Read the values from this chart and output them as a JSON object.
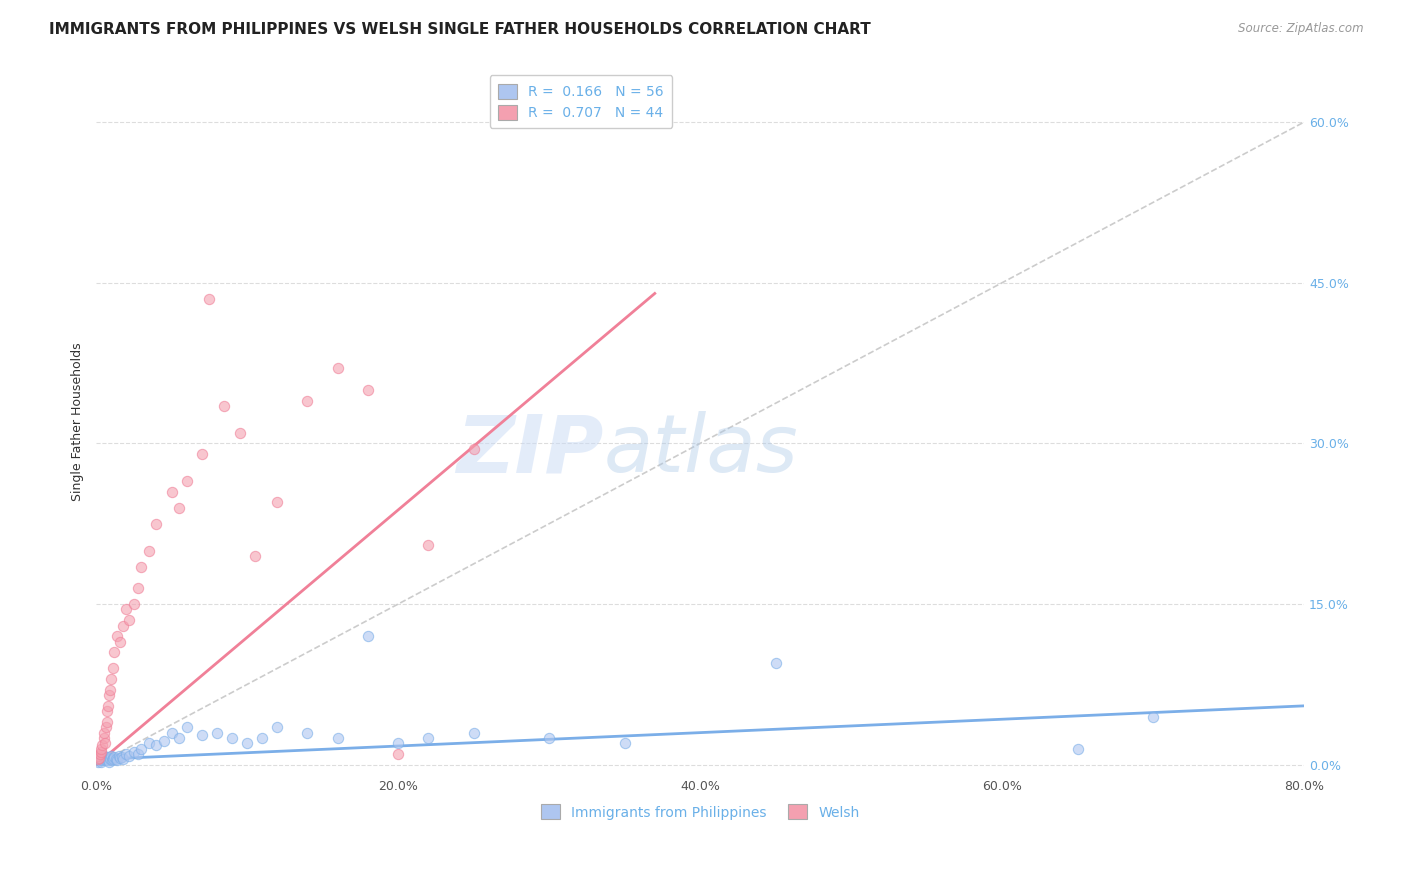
{
  "title": "IMMIGRANTS FROM PHILIPPINES VS WELSH SINGLE FATHER HOUSEHOLDS CORRELATION CHART",
  "source": "Source: ZipAtlas.com",
  "ylabel": "Single Father Households",
  "ytick_values": [
    0.0,
    15.0,
    30.0,
    45.0,
    60.0
  ],
  "xtick_values": [
    0.0,
    20.0,
    40.0,
    60.0,
    80.0
  ],
  "xlim": [
    0.0,
    80.0
  ],
  "ylim": [
    -1.0,
    65.0
  ],
  "legend_entries": [
    {
      "label": "Immigrants from Philippines",
      "color": "#aec6f0",
      "R": "0.166",
      "N": "56"
    },
    {
      "label": "Welsh",
      "color": "#f4a0b0",
      "R": "0.707",
      "N": "44"
    }
  ],
  "blue_scatter_x": [
    0.1,
    0.15,
    0.2,
    0.25,
    0.3,
    0.35,
    0.4,
    0.5,
    0.55,
    0.6,
    0.65,
    0.7,
    0.75,
    0.8,
    0.85,
    0.9,
    0.95,
    1.0,
    1.05,
    1.1,
    1.15,
    1.2,
    1.3,
    1.4,
    1.5,
    1.6,
    1.7,
    1.8,
    2.0,
    2.2,
    2.5,
    2.8,
    3.0,
    3.5,
    4.0,
    4.5,
    5.0,
    5.5,
    6.0,
    7.0,
    8.0,
    9.0,
    10.0,
    11.0,
    12.0,
    14.0,
    16.0,
    18.0,
    20.0,
    22.0,
    25.0,
    30.0,
    35.0,
    45.0,
    65.0,
    70.0
  ],
  "blue_scatter_y": [
    0.3,
    0.5,
    0.4,
    0.6,
    0.3,
    0.5,
    0.4,
    0.8,
    0.5,
    0.6,
    0.4,
    0.7,
    0.5,
    0.4,
    0.3,
    0.6,
    0.5,
    0.8,
    0.4,
    0.6,
    0.5,
    0.7,
    0.5,
    0.4,
    0.8,
    0.6,
    0.7,
    0.5,
    1.0,
    0.8,
    1.2,
    1.0,
    1.5,
    2.0,
    1.8,
    2.2,
    3.0,
    2.5,
    3.5,
    2.8,
    3.0,
    2.5,
    2.0,
    2.5,
    3.5,
    3.0,
    2.5,
    12.0,
    2.0,
    2.5,
    3.0,
    2.5,
    2.0,
    9.5,
    1.5,
    4.5
  ],
  "pink_scatter_x": [
    0.1,
    0.15,
    0.2,
    0.25,
    0.3,
    0.35,
    0.4,
    0.5,
    0.55,
    0.6,
    0.65,
    0.7,
    0.75,
    0.8,
    0.85,
    0.9,
    1.0,
    1.1,
    1.2,
    1.4,
    1.6,
    1.8,
    2.0,
    2.2,
    2.5,
    2.8,
    3.0,
    3.5,
    4.0,
    5.0,
    5.5,
    6.0,
    7.0,
    7.5,
    8.5,
    9.5,
    10.5,
    12.0,
    14.0,
    16.0,
    18.0,
    20.0,
    22.0,
    25.0
  ],
  "pink_scatter_y": [
    0.5,
    0.8,
    0.6,
    1.0,
    1.2,
    1.5,
    1.8,
    2.5,
    3.0,
    2.0,
    3.5,
    4.0,
    5.0,
    5.5,
    6.5,
    7.0,
    8.0,
    9.0,
    10.5,
    12.0,
    11.5,
    13.0,
    14.5,
    13.5,
    15.0,
    16.5,
    18.5,
    20.0,
    22.5,
    25.5,
    24.0,
    26.5,
    29.0,
    43.5,
    33.5,
    31.0,
    19.5,
    24.5,
    34.0,
    37.0,
    35.0,
    1.0,
    20.5,
    29.5
  ],
  "blue_line_x": [
    0.0,
    80.0
  ],
  "blue_line_y": [
    0.5,
    5.5
  ],
  "pink_line_x": [
    0.0,
    37.0
  ],
  "pink_line_y": [
    0.0,
    44.0
  ],
  "diagonal_line_x": [
    0.0,
    80.0
  ],
  "diagonal_line_y": [
    0.0,
    60.0
  ],
  "background_color": "#ffffff",
  "grid_color": "#dddddd",
  "scatter_alpha": 0.6,
  "scatter_size": 55,
  "blue_color": "#7baee8",
  "pink_color": "#f08098",
  "blue_legend_color": "#aec6f0",
  "pink_legend_color": "#f4a0b0",
  "diagonal_color": "#cccccc",
  "title_fontsize": 11,
  "axis_label_fontsize": 9,
  "tick_fontsize": 9,
  "legend_fontsize": 10,
  "watermark_zip_color": "#c8daf5",
  "watermark_atlas_color": "#aac8e8",
  "right_tick_color": "#6ab0e8"
}
